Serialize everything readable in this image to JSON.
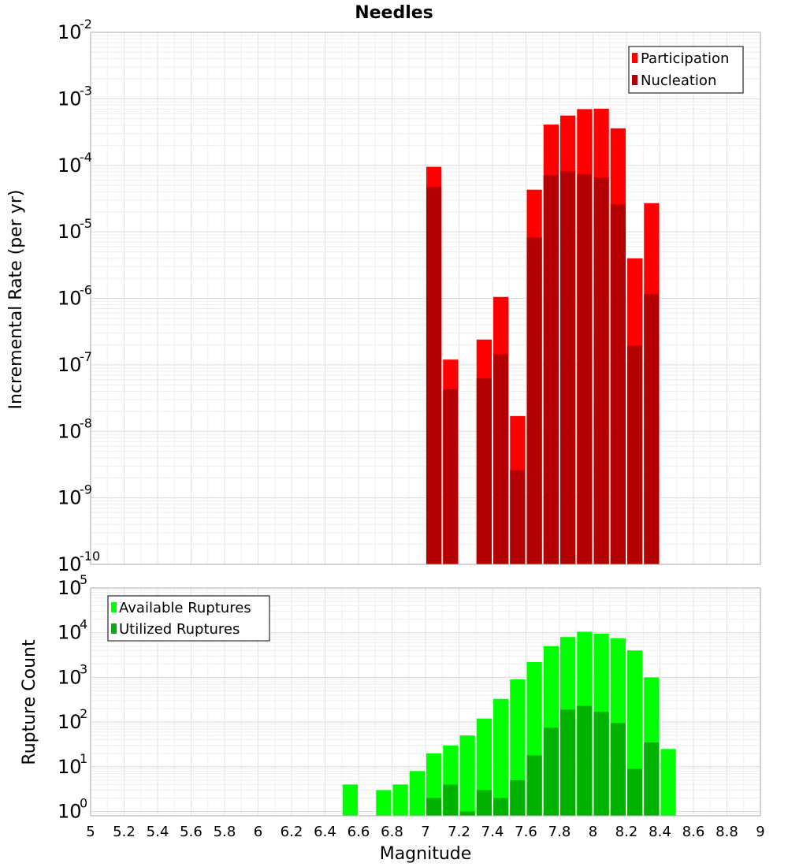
{
  "chart_data": [
    {
      "type": "bar",
      "title": "Needles",
      "xlabel": "",
      "ylabel": "Incremental Rate (per yr)",
      "yscale": "log",
      "ylim": [
        1e-10,
        0.01
      ],
      "xlim": [
        5,
        9
      ],
      "bar_width": 0.1,
      "grid": true,
      "legend_position": "top-right",
      "ytick_exponents": [
        -10,
        -9,
        -8,
        -7,
        -6,
        -5,
        -4,
        -3,
        -2
      ],
      "series": [
        {
          "name": "Participation",
          "color": "#ff0000",
          "x": [
            7.05,
            7.15,
            7.35,
            7.45,
            7.55,
            7.65,
            7.75,
            7.85,
            7.95,
            8.05,
            8.15,
            8.25,
            8.35
          ],
          "values": [
            9.5e-05,
            1.2e-07,
            2.4e-07,
            1.05e-06,
            1.7e-08,
            4.3e-05,
            0.00041,
            0.00056,
            0.0007,
            0.00071,
            0.00036,
            4e-06,
            2.7e-05
          ]
        },
        {
          "name": "Nucleation",
          "color": "#b30000",
          "x": [
            7.05,
            7.15,
            7.35,
            7.45,
            7.55,
            7.65,
            7.75,
            7.85,
            7.95,
            8.05,
            8.15,
            8.25,
            8.35
          ],
          "values": [
            4.7e-05,
            4.3e-08,
            6.3e-08,
            1.45e-07,
            2.6e-09,
            8.2e-06,
            7.1e-05,
            8.2e-05,
            7.4e-05,
            6.6e-05,
            2.6e-05,
            1.95e-07,
            1.15e-06
          ]
        }
      ]
    },
    {
      "type": "bar",
      "title": "",
      "xlabel": "Magnitude",
      "ylabel": "Rupture Count",
      "yscale": "log",
      "ylim": [
        0.8,
        100000.0
      ],
      "xlim": [
        5,
        9
      ],
      "bar_width": 0.1,
      "grid": true,
      "legend_position": "top-left",
      "ytick_exponents": [
        0,
        1,
        2,
        3,
        4,
        5
      ],
      "xticks": [
        "5",
        "5.2",
        "5.4",
        "5.6",
        "5.8",
        "6",
        "6.2",
        "6.4",
        "6.6",
        "6.8",
        "7",
        "7.2",
        "7.4",
        "7.6",
        "7.8",
        "8",
        "8.2",
        "8.4",
        "8.6",
        "8.8",
        "9"
      ],
      "series": [
        {
          "name": "Available Ruptures",
          "color": "#00ff00",
          "x": [
            6.55,
            6.75,
            6.85,
            6.95,
            7.05,
            7.15,
            7.25,
            7.35,
            7.45,
            7.55,
            7.65,
            7.75,
            7.85,
            7.95,
            8.05,
            8.15,
            8.25,
            8.35,
            8.45
          ],
          "values": [
            4,
            3,
            4,
            8,
            20,
            30,
            50,
            120,
            330,
            900,
            2200,
            5000,
            8000,
            10500,
            9500,
            7500,
            4000,
            1000,
            25
          ]
        },
        {
          "name": "Utilized Ruptures",
          "color": "#00b300",
          "x": [
            7.05,
            7.15,
            7.25,
            7.35,
            7.45,
            7.55,
            7.65,
            7.75,
            7.85,
            7.95,
            8.05,
            8.15,
            8.25,
            8.35
          ],
          "values": [
            2,
            4,
            1,
            3,
            2,
            5,
            18,
            75,
            190,
            230,
            170,
            95,
            9,
            35
          ]
        }
      ]
    }
  ]
}
